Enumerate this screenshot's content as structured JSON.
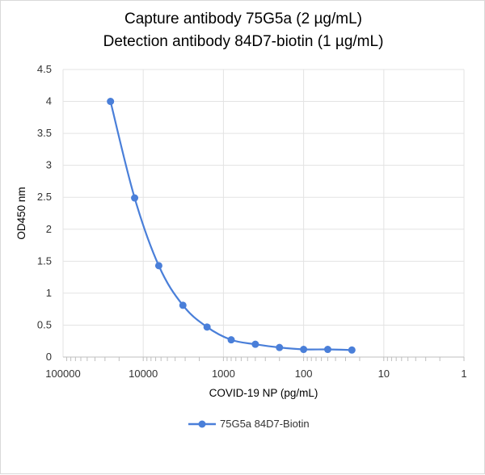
{
  "chart_data": {
    "type": "line",
    "title_lines": [
      "Capture antibody 75G5a (2 µg/mL)",
      "Detection antibody 84D7-biotin (1 µg/mL)"
    ],
    "xlabel": "COVID-19 NP (pg/mL)",
    "ylabel": "OD450 nm",
    "x_scale": "log",
    "x_reversed": true,
    "xlim": [
      100000,
      1
    ],
    "ylim": [
      0,
      4.5
    ],
    "x_ticks": [
      "100000",
      "10000",
      "1000",
      "100",
      "10",
      "1"
    ],
    "y_ticks": [
      "0",
      "0.5",
      "1",
      "1.5",
      "2",
      "2.5",
      "3",
      "3.5",
      "4",
      "4.5"
    ],
    "grid": true,
    "legend": "bottom",
    "series": [
      {
        "name": "75G5a 84D7-Biotin",
        "color": "#4a7fd9",
        "x": [
          25600,
          12800,
          6400,
          3200,
          1600,
          800,
          400,
          200,
          100,
          50,
          25
        ],
        "y": [
          4.0,
          2.49,
          1.43,
          0.81,
          0.47,
          0.27,
          0.2,
          0.15,
          0.12,
          0.12,
          0.11
        ]
      }
    ]
  }
}
